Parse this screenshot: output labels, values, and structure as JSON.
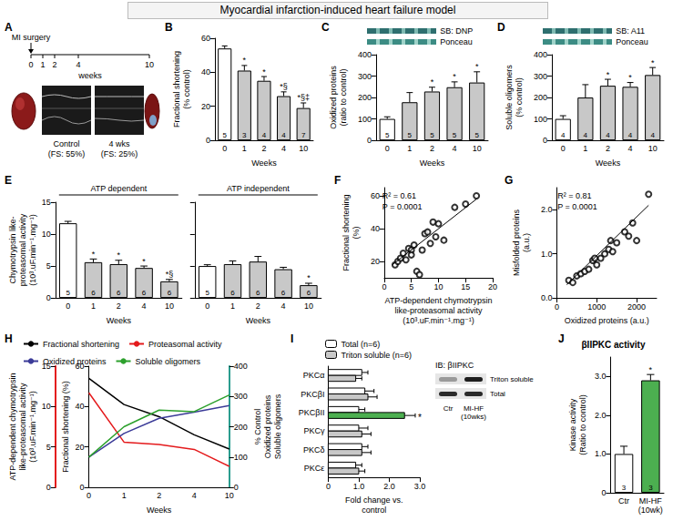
{
  "title": "Myocardial infarction-induced heart failure model",
  "panel_a": {
    "letter": "A",
    "surgery_label": "MI surgery",
    "weeks": [
      0,
      1,
      2,
      4,
      10
    ],
    "weeks_label": "weeks",
    "images": [
      "Control (FS: 55%)",
      "4 wks (FS: 25%)"
    ]
  },
  "chart_data": [
    {
      "letter": "B",
      "type": "bar",
      "categories": [
        "0",
        "1",
        "2",
        "4",
        "10"
      ],
      "values": [
        54,
        41,
        35,
        26,
        19
      ],
      "errors": [
        1.5,
        3,
        2.5,
        2.5,
        3
      ],
      "n": [
        5,
        3,
        4,
        4,
        7
      ],
      "annotations": [
        null,
        "*",
        "*",
        "*§",
        "*§‡"
      ],
      "colors": [
        "#ffffff",
        "#c8c8c8",
        "#c8c8c8",
        "#c8c8c8",
        "#c8c8c8"
      ],
      "y_label": "Fractional shortening (% control)",
      "x_label": "Weeks",
      "ylim": [
        0,
        60
      ],
      "yticks": [
        0,
        20,
        40,
        60
      ]
    },
    {
      "letter": "C",
      "type": "bar",
      "categories": [
        "0",
        "1",
        "2",
        "4",
        "10"
      ],
      "values": [
        100,
        178,
        228,
        248,
        270
      ],
      "errors": [
        10,
        45,
        20,
        25,
        50
      ],
      "n": [
        5,
        5,
        5,
        5,
        5
      ],
      "annotations": [
        null,
        null,
        "*",
        "*",
        "*"
      ],
      "colors": [
        "#ffffff",
        "#c8c8c8",
        "#c8c8c8",
        "#c8c8c8",
        "#c8c8c8"
      ],
      "y_label": "Oxidized proteins (ratio to control)",
      "x_label": "Weeks",
      "ylim": [
        0,
        400
      ],
      "yticks": [
        0,
        100,
        200,
        300,
        400
      ],
      "blot_labels": [
        "SB: DNP",
        "Ponceau"
      ]
    },
    {
      "letter": "D",
      "type": "bar",
      "categories": [
        "0",
        "1",
        "2",
        "4",
        "10"
      ],
      "values": [
        100,
        200,
        255,
        250,
        305
      ],
      "errors": [
        15,
        60,
        30,
        20,
        35
      ],
      "n": [
        4,
        4,
        4,
        4,
        4
      ],
      "annotations": [
        null,
        null,
        "*",
        "*",
        "*"
      ],
      "colors": [
        "#ffffff",
        "#c8c8c8",
        "#c8c8c8",
        "#c8c8c8",
        "#c8c8c8"
      ],
      "y_label": "Soluble oligomers (% control)",
      "x_label": "Weeks",
      "ylim": [
        0,
        400
      ],
      "yticks": [
        0,
        100,
        200,
        300,
        400
      ],
      "blot_labels": [
        "SB: A11",
        "Ponceau"
      ]
    },
    {
      "letter": "E",
      "type": "bar",
      "categories": [
        "0",
        "1",
        "2",
        "4",
        "10"
      ],
      "series": [
        {
          "name": "ATP dependent",
          "values": [
            11.7,
            5.6,
            5.3,
            4.7,
            2.6
          ],
          "errors": [
            0.3,
            0.5,
            0.6,
            0.3,
            0.3
          ],
          "n": [
            5,
            6,
            6,
            6,
            6
          ],
          "annotations": [
            null,
            "*",
            "*",
            "*",
            "*§"
          ],
          "colors": [
            "#ffffff",
            "#c8c8c8",
            "#c8c8c8",
            "#c8c8c8",
            "#c8c8c8"
          ]
        },
        {
          "name": "ATP independent",
          "values": [
            5.0,
            5.3,
            5.7,
            4.5,
            2.0
          ],
          "errors": [
            0.2,
            0.5,
            0.8,
            0.3,
            0.3
          ],
          "n": [
            5,
            6,
            6,
            6,
            6
          ],
          "annotations": [
            null,
            null,
            null,
            null,
            "*"
          ],
          "colors": [
            "#ffffff",
            "#c8c8c8",
            "#c8c8c8",
            "#c8c8c8",
            "#c8c8c8"
          ]
        }
      ],
      "y_label": "Chymotrypsin like-proteasomal activity (10³.uF.min⁻¹.mg⁻¹)",
      "x_label": "Weeks",
      "ylim": [
        0,
        15
      ],
      "yticks": [
        0,
        5,
        10,
        15
      ]
    },
    {
      "letter": "F",
      "type": "scatter",
      "marker": "open circle",
      "x": [
        2,
        2.5,
        3,
        3.5,
        4,
        4.5,
        5,
        5,
        5.5,
        6,
        6.5,
        7,
        7.5,
        8,
        8.5,
        9,
        9.5,
        10,
        11,
        13,
        15,
        17
      ],
      "values": [
        18,
        20,
        22,
        25,
        21,
        28,
        27,
        24,
        30,
        14,
        12,
        27,
        37,
        38,
        31,
        44,
        35,
        43,
        33,
        53,
        55,
        60
      ],
      "fit": {
        "x": [
          1.5,
          17
        ],
        "values": [
          18,
          58
        ]
      },
      "annotations": [
        "R² = 0.61",
        "P = 0.0001"
      ],
      "x_label": "ATP-dependent chymotrypsin like-proteasomal activity (10³.uF.min⁻¹.mg⁻¹)",
      "y_label": "Fractional shortening (%)",
      "xlim": [
        0,
        20
      ],
      "xticks": [
        0,
        5,
        10,
        15,
        20
      ],
      "ylim": [
        10,
        65
      ],
      "yticks": [
        20,
        40,
        60
      ]
    },
    {
      "letter": "G",
      "type": "scatter",
      "marker": "open circle",
      "x": [
        300,
        400,
        500,
        600,
        700,
        800,
        900,
        950,
        1000,
        1100,
        1200,
        1300,
        1350,
        1400,
        1500,
        1700,
        1800,
        1900,
        2000,
        2300
      ],
      "values": [
        0.4,
        0.35,
        0.5,
        0.55,
        0.6,
        0.65,
        0.85,
        0.9,
        0.75,
        0.9,
        1.0,
        1.1,
        1.3,
        1.05,
        1.25,
        1.5,
        1.4,
        1.7,
        1.3,
        2.35
      ],
      "fit": {
        "x": [
          250,
          2300
        ],
        "values": [
          0.3,
          2.1
        ]
      },
      "annotations": [
        "R² = 0.81",
        "P = 0.0001"
      ],
      "x_label": "Oxidized proteins (a.u.)",
      "y_label": "Misfolded proteins (a.u.)",
      "xlim": [
        0,
        2500
      ],
      "xticks": [
        0,
        1000,
        2000
      ],
      "ylim": [
        0,
        2.5
      ],
      "yticks": [
        {
          "value": 0,
          "label": "0.0"
        },
        {
          "value": 1,
          "label": "1.0"
        },
        {
          "value": 2,
          "label": "2.0"
        }
      ]
    },
    {
      "letter": "H",
      "type": "line",
      "categories": [
        "0",
        "1",
        "2",
        "4",
        "10"
      ],
      "x_label": "Weeks",
      "legend": "top",
      "series": [
        {
          "name": "Fractional shortening",
          "color": "#000000",
          "axis": "y",
          "values": [
            54,
            41,
            35,
            26,
            19
          ]
        },
        {
          "name": "Proteasomal activity",
          "color": "#e41a1c",
          "axis": "y3",
          "values": [
            11.7,
            5.6,
            5.3,
            4.7,
            2.6
          ]
        },
        {
          "name": "Oxidized proteins",
          "color": "#3b3b98",
          "axis": "y2",
          "values": [
            100,
            178,
            228,
            248,
            270
          ]
        },
        {
          "name": "Soluble oligomers",
          "color": "#2ca02c",
          "axis": "y2",
          "values": [
            100,
            200,
            255,
            250,
            305
          ]
        }
      ],
      "y_label": "Fractional shortening (%)",
      "ylim": [
        0,
        60
      ],
      "yticks": [
        0,
        20,
        40,
        60
      ],
      "y3_label": "ATP-dependent chymotrypsin like-proteasomal activity (10³.uF.min⁻¹.mg⁻¹)",
      "y3lim": [
        0,
        15
      ],
      "y3ticks": [
        0,
        5,
        10,
        15
      ],
      "y2_label": "% Control Oxidized proteins Soluble oligomers",
      "y2lim": [
        0,
        400
      ],
      "y2ticks": [
        0,
        100,
        200,
        300,
        400
      ]
    },
    {
      "letter": "I",
      "type": "bar",
      "orientation": "horizontal",
      "legend": "top",
      "categories": [
        "PKCα",
        "PKCβI",
        "PKCβII",
        "PKCγ",
        "PKCδ",
        "PKCε"
      ],
      "series": [
        {
          "name": "Total (n=6)",
          "color": "#ffffff",
          "values": [
            1.1,
            1.2,
            1.0,
            1.0,
            1.1,
            0.9
          ],
          "errors": [
            0.2,
            0.3,
            0.2,
            0.3,
            0.2,
            0.2
          ],
          "annotations": [
            null,
            null,
            null,
            null,
            null,
            null
          ]
        },
        {
          "name": "Triton soluble (n=6)",
          "color": "#c8c8c8",
          "colors": [
            "#c8c8c8",
            "#c8c8c8",
            "#4caf50",
            "#c8c8c8",
            "#c8c8c8",
            "#c8c8c8"
          ],
          "values": [
            0.9,
            1.3,
            2.5,
            1.1,
            1.1,
            1.0
          ],
          "errors": [
            0.2,
            0.3,
            0.35,
            0.3,
            0.3,
            0.2
          ],
          "annotations": [
            null,
            null,
            "*",
            null,
            null,
            null
          ]
        }
      ],
      "x_label": "Fold change vs. control",
      "xlim": [
        0,
        3
      ],
      "xticks": [
        0,
        {
          "value": 1,
          "label": "1.0"
        },
        {
          "value": 2,
          "label": "2.0"
        },
        {
          "value": 3,
          "label": "3.0"
        }
      ],
      "blot": {
        "title": "IB: βIIPKC",
        "rows": [
          "Triton soluble",
          "Total"
        ],
        "lanes": [
          "Ctr",
          "MI-HF (10wks)"
        ]
      }
    },
    {
      "letter": "J",
      "type": "bar",
      "title": "βIIPKC activity",
      "categories": [
        "Ctr",
        "MI-HF (10wk)"
      ],
      "values": [
        1.0,
        2.9
      ],
      "errors": [
        0.2,
        0.15
      ],
      "n": [
        3,
        3
      ],
      "annotations": [
        null,
        "*"
      ],
      "colors": [
        "#ffffff",
        "#4caf50"
      ],
      "y_label": "Kinase activity (Ratio to control)",
      "ylim": [
        0,
        3.5
      ],
      "yticks": [
        0,
        {
          "value": 1,
          "label": "1.0"
        },
        {
          "value": 2,
          "label": "2.0"
        },
        {
          "value": 3,
          "label": "3.0"
        }
      ]
    }
  ]
}
